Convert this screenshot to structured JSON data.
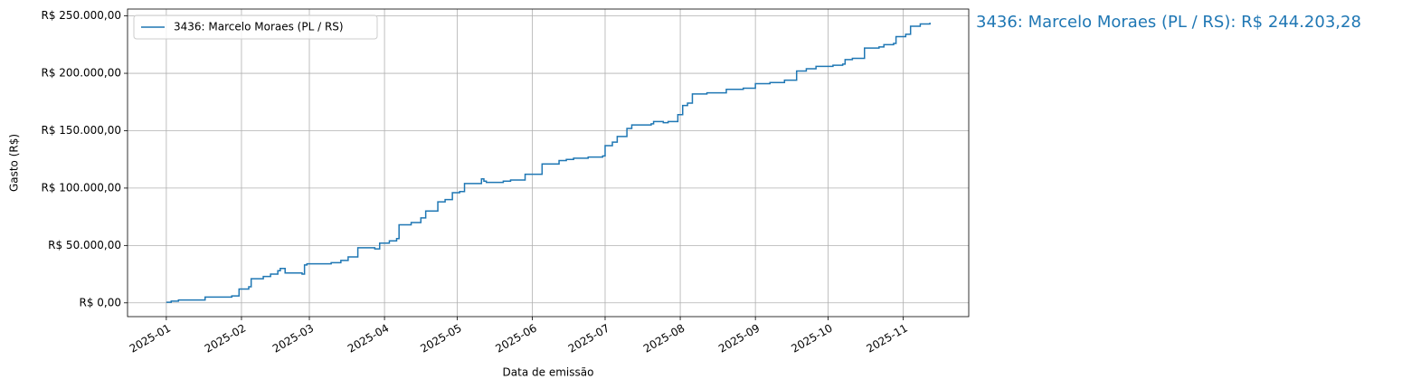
{
  "chart_data": {
    "type": "line",
    "drawstyle": "steps-post",
    "xlabel": "Data de emissão",
    "ylabel": "Gasto (R$)",
    "annotation": "3436: Marcelo Moraes (PL / RS): R$ 244.203,28",
    "x": [
      "2025-01-01",
      "2025-01-03",
      "2025-01-06",
      "2025-01-17",
      "2025-01-28",
      "2025-01-31",
      "2025-02-04",
      "2025-02-05",
      "2025-02-10",
      "2025-02-13",
      "2025-02-16",
      "2025-02-17",
      "2025-02-19",
      "2025-02-26",
      "2025-02-27",
      "2025-02-28",
      "2025-03-10",
      "2025-03-14",
      "2025-03-17",
      "2025-03-21",
      "2025-03-28",
      "2025-03-30",
      "2025-04-03",
      "2025-04-06",
      "2025-04-07",
      "2025-04-12",
      "2025-04-16",
      "2025-04-18",
      "2025-04-23",
      "2025-04-26",
      "2025-04-29",
      "2025-05-02",
      "2025-05-04",
      "2025-05-11",
      "2025-05-12",
      "2025-05-13",
      "2025-05-20",
      "2025-05-23",
      "2025-05-29",
      "2025-06-05",
      "2025-06-12",
      "2025-06-15",
      "2025-06-18",
      "2025-06-24",
      "2025-06-30",
      "2025-07-01",
      "2025-07-04",
      "2025-07-06",
      "2025-07-10",
      "2025-07-12",
      "2025-07-20",
      "2025-07-21",
      "2025-07-25",
      "2025-07-27",
      "2025-07-31",
      "2025-08-02",
      "2025-08-04",
      "2025-08-06",
      "2025-08-12",
      "2025-08-20",
      "2025-08-27",
      "2025-09-01",
      "2025-09-07",
      "2025-09-13",
      "2025-09-18",
      "2025-09-22",
      "2025-09-26",
      "2025-10-03",
      "2025-10-07",
      "2025-10-08",
      "2025-10-11",
      "2025-10-16",
      "2025-10-22",
      "2025-10-24",
      "2025-10-28",
      "2025-10-29",
      "2025-11-02",
      "2025-11-04",
      "2025-11-08",
      "2025-11-12"
    ],
    "series": [
      {
        "name": "3436: Marcelo Moraes (PL / RS)",
        "color": "#1f77b4",
        "values": [
          500,
          1500,
          2500,
          5000,
          6000,
          12000,
          14000,
          21000,
          23000,
          25000,
          28000,
          30000,
          26000,
          25000,
          33000,
          34000,
          35000,
          37000,
          40000,
          48000,
          47000,
          52000,
          54000,
          56000,
          68000,
          70000,
          74000,
          80000,
          88000,
          90000,
          96000,
          97000,
          104000,
          108000,
          106000,
          105000,
          106000,
          107000,
          112000,
          121000,
          124000,
          125000,
          126000,
          127000,
          128000,
          137000,
          140000,
          145000,
          152000,
          155000,
          156000,
          158000,
          157000,
          158000,
          164000,
          172000,
          174000,
          182000,
          183000,
          186000,
          187000,
          191000,
          192000,
          194000,
          202000,
          204000,
          206000,
          207000,
          208000,
          212000,
          213000,
          222000,
          223000,
          225000,
          226000,
          232000,
          234000,
          241000,
          243000,
          244203.28
        ]
      }
    ],
    "xlim": [
      "2024-12-16",
      "2025-11-28"
    ],
    "xticks": [
      {
        "value": "2025-01-01",
        "label": "2025-01"
      },
      {
        "value": "2025-02-01",
        "label": "2025-02"
      },
      {
        "value": "2025-03-01",
        "label": "2025-03"
      },
      {
        "value": "2025-04-01",
        "label": "2025-04"
      },
      {
        "value": "2025-05-01",
        "label": "2025-05"
      },
      {
        "value": "2025-06-01",
        "label": "2025-06"
      },
      {
        "value": "2025-07-01",
        "label": "2025-07"
      },
      {
        "value": "2025-08-01",
        "label": "2025-08"
      },
      {
        "value": "2025-09-01",
        "label": "2025-09"
      },
      {
        "value": "2025-10-01",
        "label": "2025-10"
      },
      {
        "value": "2025-11-01",
        "label": "2025-11"
      }
    ],
    "ylim": [
      -12000,
      256000
    ],
    "yticks": [
      {
        "value": 0,
        "label": "R$ 0,00"
      },
      {
        "value": 50000,
        "label": "R$ 50.000,00"
      },
      {
        "value": 100000,
        "label": "R$ 100.000,00"
      },
      {
        "value": 150000,
        "label": "R$ 150.000,00"
      },
      {
        "value": 200000,
        "label": "R$ 200.000,00"
      },
      {
        "value": 250000,
        "label": "R$ 250.000,00"
      }
    ],
    "grid": true,
    "legend": "upper left"
  }
}
